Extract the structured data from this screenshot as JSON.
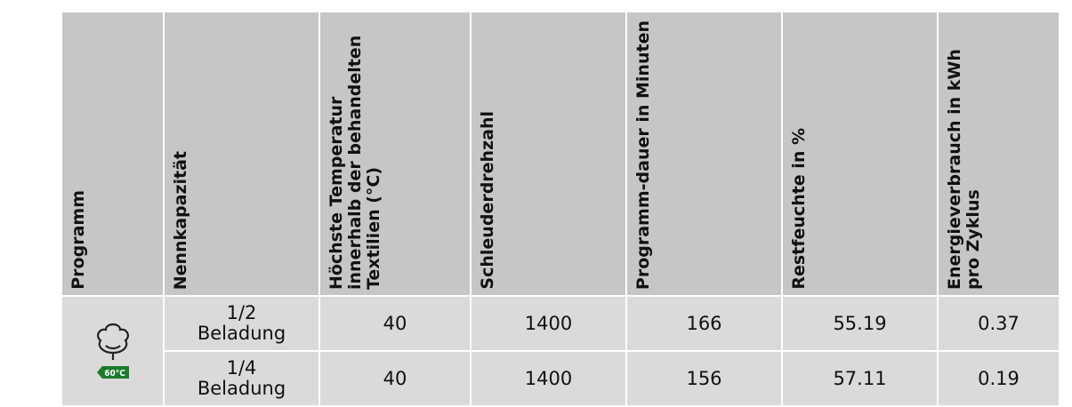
{
  "table": {
    "headers": [
      "Programm",
      "Nennkapazität",
      "Höchste Temperatur innerhalb der behandelten Textilien (°C)",
      "Schleuderdrehzahl",
      "Programm-dauer in Minuten",
      "Restfeuchte in %",
      "Energieverbrauch in kWh pro Zyklus"
    ],
    "icon_label": "60°C",
    "rows": [
      [
        "1/2 Beladung",
        "40",
        "1400",
        "166",
        "55.19",
        "0.37"
      ],
      [
        "1/4 Beladung",
        "40",
        "1400",
        "156",
        "57.11",
        "0.19"
      ]
    ]
  }
}
